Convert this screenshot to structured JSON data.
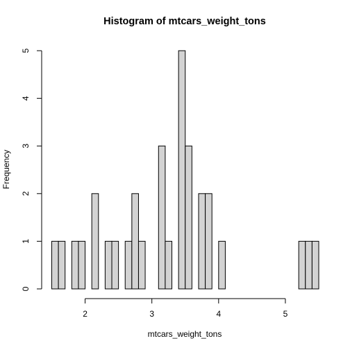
{
  "chart_data": {
    "type": "bar",
    "title": "Histogram of mtcars_weight_tons",
    "xlabel": "mtcars_weight_tons",
    "ylabel": "Frequency",
    "bin_width": 0.1,
    "bins": [
      {
        "start": 1.5,
        "end": 1.6,
        "count": 1
      },
      {
        "start": 1.6,
        "end": 1.7,
        "count": 1
      },
      {
        "start": 1.7,
        "end": 1.8,
        "count": 0
      },
      {
        "start": 1.8,
        "end": 1.9,
        "count": 1
      },
      {
        "start": 1.9,
        "end": 2.0,
        "count": 1
      },
      {
        "start": 2.0,
        "end": 2.1,
        "count": 0
      },
      {
        "start": 2.1,
        "end": 2.2,
        "count": 2
      },
      {
        "start": 2.2,
        "end": 2.3,
        "count": 0
      },
      {
        "start": 2.3,
        "end": 2.4,
        "count": 1
      },
      {
        "start": 2.4,
        "end": 2.5,
        "count": 1
      },
      {
        "start": 2.5,
        "end": 2.6,
        "count": 0
      },
      {
        "start": 2.6,
        "end": 2.7,
        "count": 1
      },
      {
        "start": 2.7,
        "end": 2.8,
        "count": 2
      },
      {
        "start": 2.8,
        "end": 2.9,
        "count": 1
      },
      {
        "start": 2.9,
        "end": 3.0,
        "count": 0
      },
      {
        "start": 3.0,
        "end": 3.1,
        "count": 0
      },
      {
        "start": 3.1,
        "end": 3.2,
        "count": 3
      },
      {
        "start": 3.2,
        "end": 3.3,
        "count": 1
      },
      {
        "start": 3.3,
        "end": 3.4,
        "count": 0
      },
      {
        "start": 3.4,
        "end": 3.5,
        "count": 5
      },
      {
        "start": 3.5,
        "end": 3.6,
        "count": 3
      },
      {
        "start": 3.6,
        "end": 3.7,
        "count": 0
      },
      {
        "start": 3.7,
        "end": 3.8,
        "count": 2
      },
      {
        "start": 3.8,
        "end": 3.9,
        "count": 2
      },
      {
        "start": 3.9,
        "end": 4.0,
        "count": 0
      },
      {
        "start": 4.0,
        "end": 4.1,
        "count": 1
      },
      {
        "start": 4.1,
        "end": 4.2,
        "count": 0
      },
      {
        "start": 4.2,
        "end": 4.3,
        "count": 0
      },
      {
        "start": 4.3,
        "end": 4.4,
        "count": 0
      },
      {
        "start": 4.4,
        "end": 4.5,
        "count": 0
      },
      {
        "start": 4.5,
        "end": 4.6,
        "count": 0
      },
      {
        "start": 4.6,
        "end": 4.7,
        "count": 0
      },
      {
        "start": 4.7,
        "end": 4.8,
        "count": 0
      },
      {
        "start": 4.8,
        "end": 4.9,
        "count": 0
      },
      {
        "start": 4.9,
        "end": 5.0,
        "count": 0
      },
      {
        "start": 5.0,
        "end": 5.1,
        "count": 0
      },
      {
        "start": 5.1,
        "end": 5.2,
        "count": 0
      },
      {
        "start": 5.2,
        "end": 5.3,
        "count": 1
      },
      {
        "start": 5.3,
        "end": 5.4,
        "count": 1
      },
      {
        "start": 5.4,
        "end": 5.5,
        "count": 1
      }
    ],
    "xlim": [
      1.5,
      5.5
    ],
    "ylim": [
      0,
      5
    ],
    "x_ticks": [
      2,
      3,
      4,
      5
    ],
    "x_tick_labels": [
      "2",
      "3",
      "4",
      "5"
    ],
    "y_ticks": [
      0,
      1,
      2,
      3,
      4,
      5
    ],
    "y_tick_labels": [
      "0",
      "1",
      "2",
      "3",
      "4",
      "5"
    ],
    "grid": false,
    "legend": "none",
    "colors": {
      "bar_fill": "#d3d3d3",
      "bar_stroke": "#000000"
    }
  }
}
